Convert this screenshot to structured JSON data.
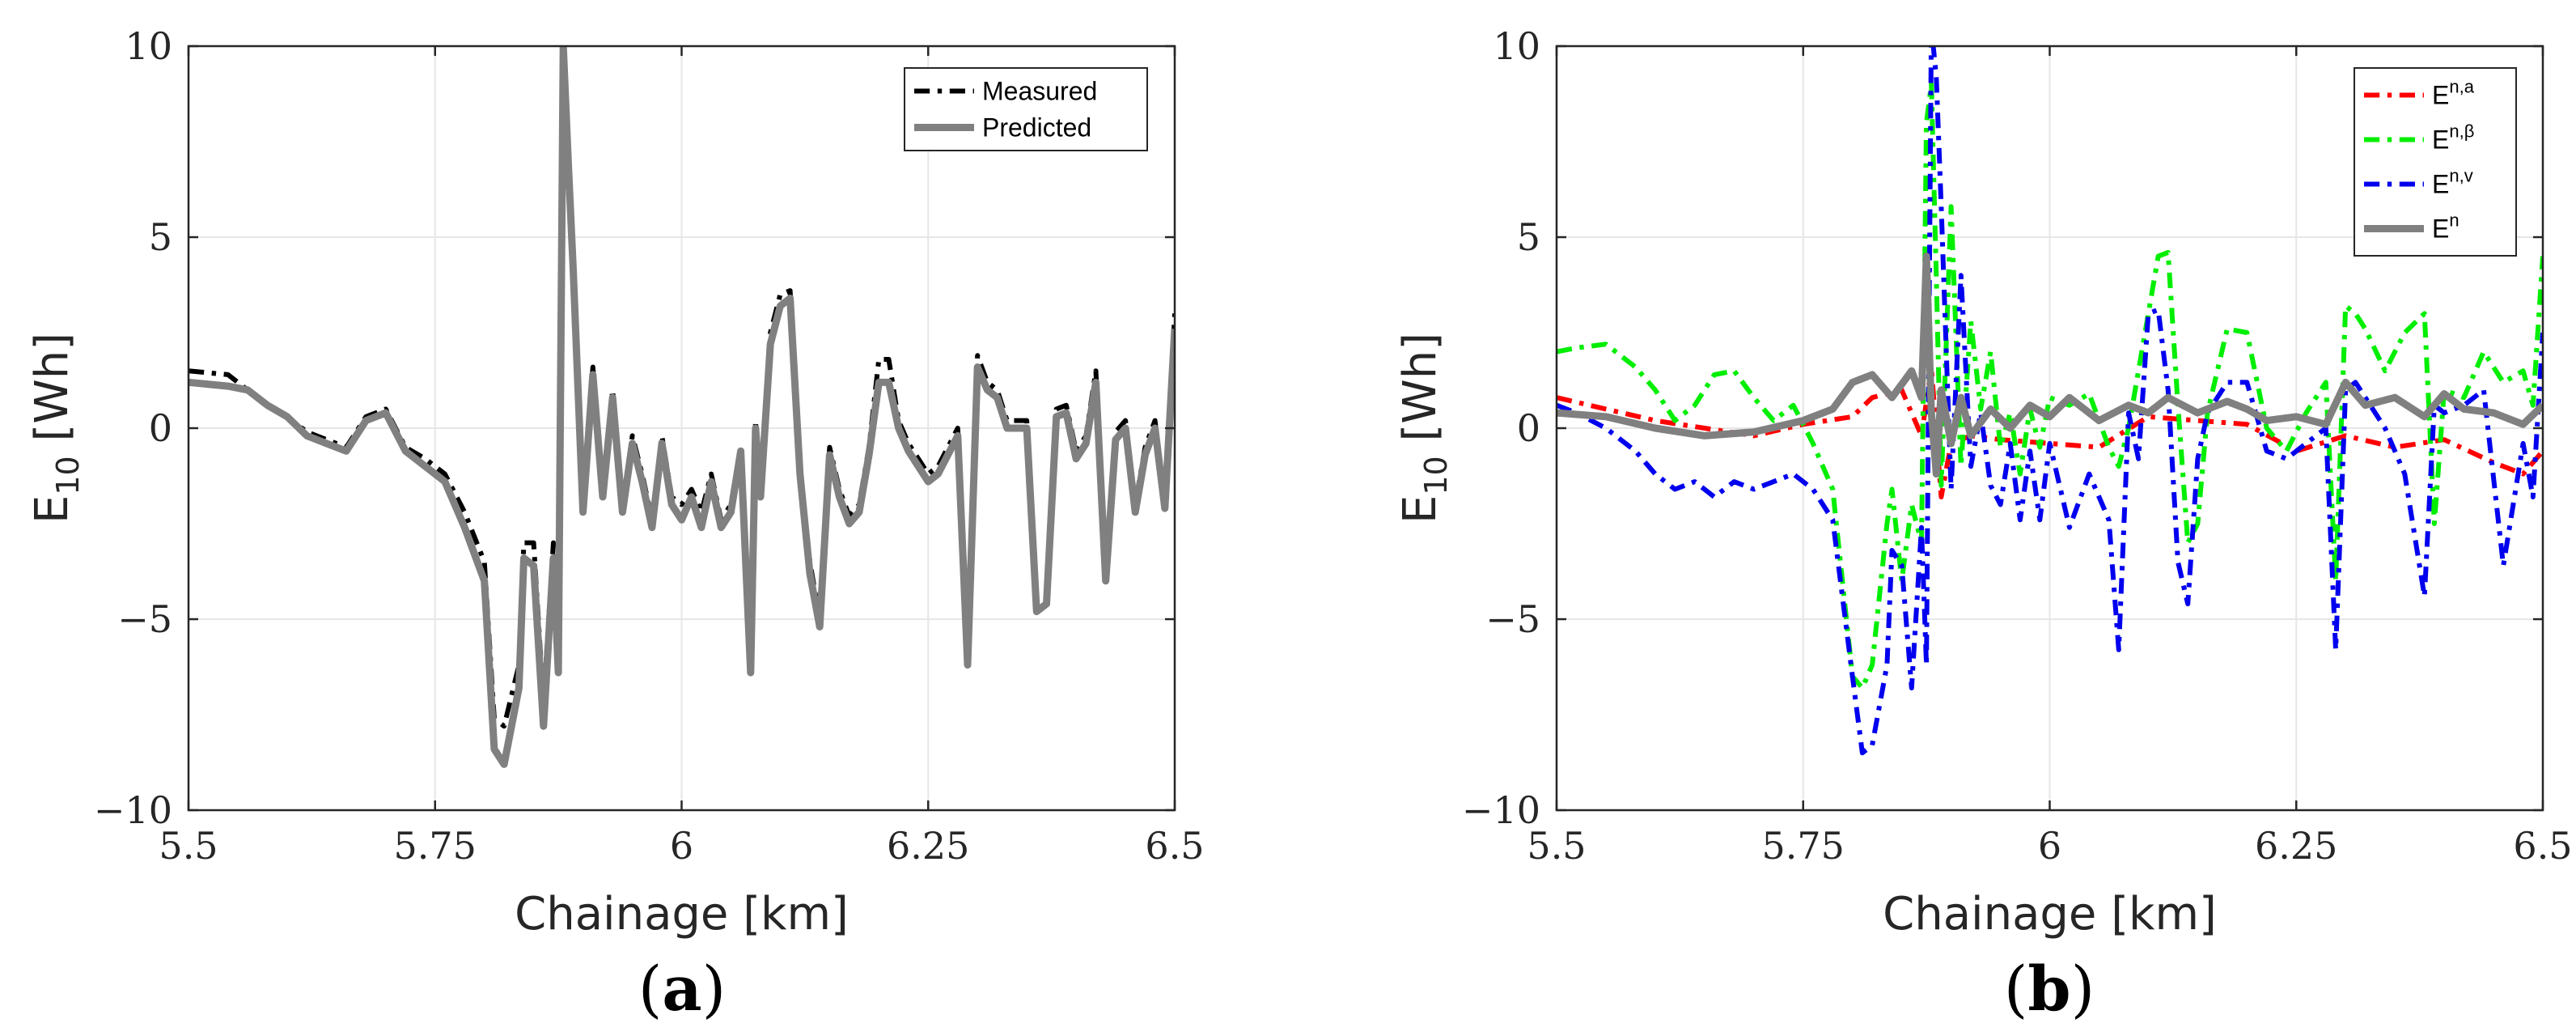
{
  "chart_data": [
    {
      "type": "line",
      "panel_label": "a",
      "xlabel": "Chainage [km]",
      "ylabel": "E",
      "ylabel_sub": "10",
      "ylabel_unit": " [Wh]",
      "xlim": [
        5.5,
        6.5
      ],
      "ylim": [
        -10,
        10
      ],
      "xticks": [
        5.5,
        5.75,
        6,
        6.25,
        6.5
      ],
      "xtick_labels": [
        "5.5",
        "5.75",
        "6",
        "6.25",
        "6.5"
      ],
      "yticks": [
        -10,
        -5,
        0,
        5,
        10
      ],
      "ytick_labels": [
        "−10",
        "−5",
        "0",
        "5",
        "10"
      ],
      "grid": true,
      "legend_position": "top-right",
      "series": [
        {
          "name": "Measured",
          "color": "#000000",
          "style": "dashdot",
          "x": [
            5.5,
            5.54,
            5.56,
            5.58,
            5.6,
            5.62,
            5.64,
            5.66,
            5.68,
            5.7,
            5.72,
            5.74,
            5.76,
            5.78,
            5.8,
            5.81,
            5.82,
            5.835,
            5.84,
            5.85,
            5.86,
            5.87,
            5.875,
            5.88,
            5.885,
            5.89,
            5.9,
            5.91,
            5.92,
            5.93,
            5.94,
            5.95,
            5.96,
            5.97,
            5.98,
            5.99,
            6.0,
            6.01,
            6.02,
            6.03,
            6.04,
            6.05,
            6.06,
            6.07,
            6.075,
            6.08,
            6.09,
            6.1,
            6.11,
            6.12,
            6.13,
            6.14,
            6.15,
            6.16,
            6.17,
            6.18,
            6.19,
            6.2,
            6.21,
            6.22,
            6.23,
            6.24,
            6.25,
            6.26,
            6.27,
            6.28,
            6.29,
            6.3,
            6.31,
            6.32,
            6.33,
            6.34,
            6.35,
            6.36,
            6.37,
            6.38,
            6.39,
            6.4,
            6.41,
            6.42,
            6.43,
            6.44,
            6.45,
            6.46,
            6.47,
            6.48,
            6.49,
            6.5
          ],
          "y": [
            1.5,
            1.4,
            1.0,
            0.6,
            0.3,
            -0.1,
            -0.3,
            -0.5,
            0.3,
            0.5,
            -0.5,
            -0.8,
            -1.2,
            -2.2,
            -3.5,
            -7.6,
            -7.8,
            -6.2,
            -3.0,
            -3.0,
            -7.2,
            -3.0,
            -6.0,
            10.5,
            7.4,
            4.6,
            -1.8,
            1.6,
            -1.6,
            1.0,
            -2.0,
            -0.2,
            -1.2,
            -2.4,
            -0.2,
            -1.8,
            -2.0,
            -1.6,
            -2.2,
            -1.2,
            -2.4,
            -2.0,
            -0.5,
            -6.2,
            0.2,
            -1.5,
            2.5,
            3.5,
            3.6,
            -1.0,
            -3.5,
            -5.0,
            -0.5,
            -1.6,
            -2.3,
            -2.0,
            -0.5,
            1.8,
            1.8,
            0.2,
            -0.4,
            -0.8,
            -1.2,
            -1.0,
            -0.5,
            0.0,
            -5.8,
            1.9,
            1.2,
            1.0,
            0.2,
            0.2,
            0.2,
            -4.5,
            -4.4,
            0.5,
            0.6,
            -0.6,
            -0.2,
            1.5,
            -3.9,
            -0.1,
            0.2,
            -2.0,
            -0.5,
            0.2,
            -1.9,
            3.0
          ]
        },
        {
          "name": "Predicted",
          "color": "#808080",
          "style": "solid",
          "x": [
            5.5,
            5.54,
            5.56,
            5.58,
            5.6,
            5.62,
            5.64,
            5.66,
            5.68,
            5.7,
            5.72,
            5.74,
            5.76,
            5.78,
            5.8,
            5.81,
            5.82,
            5.835,
            5.84,
            5.85,
            5.86,
            5.87,
            5.875,
            5.88,
            5.885,
            5.89,
            5.9,
            5.91,
            5.92,
            5.93,
            5.94,
            5.95,
            5.96,
            5.97,
            5.98,
            5.99,
            6.0,
            6.01,
            6.02,
            6.03,
            6.04,
            6.05,
            6.06,
            6.07,
            6.075,
            6.08,
            6.09,
            6.1,
            6.11,
            6.12,
            6.13,
            6.14,
            6.15,
            6.16,
            6.17,
            6.18,
            6.19,
            6.2,
            6.21,
            6.22,
            6.23,
            6.24,
            6.25,
            6.26,
            6.27,
            6.28,
            6.29,
            6.3,
            6.31,
            6.32,
            6.33,
            6.34,
            6.35,
            6.36,
            6.37,
            6.38,
            6.39,
            6.4,
            6.41,
            6.42,
            6.43,
            6.44,
            6.45,
            6.46,
            6.47,
            6.48,
            6.49,
            6.5
          ],
          "y": [
            1.2,
            1.1,
            1.0,
            0.6,
            0.3,
            -0.2,
            -0.4,
            -0.6,
            0.2,
            0.4,
            -0.6,
            -1.0,
            -1.4,
            -2.6,
            -4.0,
            -8.4,
            -8.8,
            -6.8,
            -3.4,
            -3.6,
            -7.8,
            -3.4,
            -6.4,
            10.0,
            7.0,
            4.2,
            -2.2,
            1.4,
            -1.8,
            0.8,
            -2.2,
            -0.4,
            -1.4,
            -2.6,
            -0.4,
            -2.0,
            -2.4,
            -1.8,
            -2.6,
            -1.4,
            -2.6,
            -2.2,
            -0.6,
            -6.4,
            0.0,
            -1.8,
            2.2,
            3.2,
            3.4,
            -1.2,
            -3.8,
            -5.2,
            -0.7,
            -1.8,
            -2.5,
            -2.2,
            -0.7,
            1.2,
            1.2,
            0.0,
            -0.6,
            -1.0,
            -1.4,
            -1.2,
            -0.7,
            -0.2,
            -6.2,
            1.6,
            1.0,
            0.8,
            0.0,
            0.0,
            0.0,
            -4.8,
            -4.6,
            0.3,
            0.4,
            -0.8,
            -0.4,
            1.2,
            -4.0,
            -0.3,
            0.0,
            -2.2,
            -0.7,
            0.0,
            -2.1,
            2.6
          ]
        }
      ]
    },
    {
      "type": "line",
      "panel_label": "b",
      "xlabel": "Chainage [km]",
      "ylabel": "E",
      "ylabel_sub": "10",
      "ylabel_unit": " [Wh]",
      "xlim": [
        5.5,
        6.5
      ],
      "ylim": [
        -10,
        10
      ],
      "xticks": [
        5.5,
        5.75,
        6,
        6.25,
        6.5
      ],
      "xtick_labels": [
        "5.5",
        "5.75",
        "6",
        "6.25",
        "6.5"
      ],
      "yticks": [
        -10,
        -5,
        0,
        5,
        10
      ],
      "ytick_labels": [
        "−10",
        "−5",
        "0",
        "5",
        "10"
      ],
      "grid": true,
      "legend_position": "top-right",
      "series": [
        {
          "name": "E",
          "superscript": "n,a",
          "color": "#ff0000",
          "style": "dashdot",
          "x": [
            5.5,
            5.55,
            5.6,
            5.65,
            5.7,
            5.75,
            5.8,
            5.82,
            5.85,
            5.87,
            5.88,
            5.89,
            5.9,
            5.92,
            5.95,
            6.0,
            6.05,
            6.1,
            6.15,
            6.2,
            6.25,
            6.3,
            6.35,
            6.4,
            6.45,
            6.48,
            6.5
          ],
          "y": [
            0.8,
            0.5,
            0.2,
            0.0,
            -0.2,
            0.1,
            0.3,
            0.8,
            1.0,
            -0.2,
            1.6,
            -1.8,
            -0.4,
            -0.2,
            -0.3,
            -0.4,
            -0.5,
            0.3,
            0.2,
            0.1,
            -0.6,
            -0.2,
            -0.5,
            -0.3,
            -0.9,
            -1.2,
            -0.6
          ]
        },
        {
          "name": "E",
          "superscript": "n,β",
          "color": "#00ee00",
          "style": "dashdot",
          "x": [
            5.5,
            5.52,
            5.55,
            5.58,
            5.6,
            5.62,
            5.64,
            5.66,
            5.68,
            5.7,
            5.72,
            5.74,
            5.76,
            5.78,
            5.8,
            5.81,
            5.82,
            5.835,
            5.84,
            5.85,
            5.86,
            5.87,
            5.875,
            5.88,
            5.885,
            5.89,
            5.9,
            5.91,
            5.92,
            5.93,
            5.94,
            5.95,
            5.96,
            5.97,
            5.98,
            5.99,
            6.0,
            6.02,
            6.04,
            6.06,
            6.07,
            6.08,
            6.09,
            6.1,
            6.11,
            6.12,
            6.13,
            6.14,
            6.15,
            6.16,
            6.18,
            6.2,
            6.22,
            6.24,
            6.26,
            6.28,
            6.29,
            6.3,
            6.31,
            6.32,
            6.34,
            6.36,
            6.38,
            6.39,
            6.4,
            6.42,
            6.44,
            6.46,
            6.48,
            6.49,
            6.5
          ],
          "y": [
            2.0,
            2.1,
            2.2,
            1.6,
            1.0,
            0.2,
            0.6,
            1.4,
            1.5,
            0.8,
            0.2,
            0.6,
            -0.4,
            -1.6,
            -6.5,
            -6.8,
            -6.2,
            -2.5,
            -1.6,
            -4.0,
            -2.0,
            -3.0,
            8.0,
            9.0,
            4.0,
            -1.5,
            5.8,
            -1.0,
            2.8,
            0.5,
            2.0,
            -0.5,
            0.4,
            -1.2,
            0.5,
            -0.5,
            0.8,
            0.6,
            0.9,
            -0.5,
            -1.0,
            0.0,
            1.5,
            3.0,
            4.5,
            4.6,
            0.6,
            -3.0,
            -2.5,
            0.4,
            2.6,
            2.5,
            0.0,
            -0.6,
            0.4,
            1.2,
            -4.0,
            3.2,
            3.0,
            2.6,
            1.5,
            2.5,
            3.0,
            -2.5,
            1.0,
            0.8,
            2.0,
            1.2,
            1.5,
            0.6,
            4.5
          ]
        },
        {
          "name": "E",
          "superscript": "n,v",
          "color": "#0000ee",
          "style": "dashdot",
          "x": [
            5.5,
            5.52,
            5.55,
            5.58,
            5.6,
            5.62,
            5.64,
            5.66,
            5.68,
            5.7,
            5.72,
            5.74,
            5.76,
            5.78,
            5.8,
            5.81,
            5.82,
            5.835,
            5.84,
            5.85,
            5.86,
            5.87,
            5.875,
            5.88,
            5.885,
            5.89,
            5.9,
            5.91,
            5.92,
            5.93,
            5.94,
            5.95,
            5.96,
            5.97,
            5.98,
            5.99,
            6.0,
            6.02,
            6.04,
            6.06,
            6.07,
            6.08,
            6.09,
            6.1,
            6.11,
            6.12,
            6.13,
            6.14,
            6.15,
            6.16,
            6.18,
            6.2,
            6.22,
            6.24,
            6.26,
            6.28,
            6.29,
            6.3,
            6.31,
            6.32,
            6.34,
            6.36,
            6.38,
            6.39,
            6.4,
            6.42,
            6.44,
            6.46,
            6.48,
            6.49,
            6.5
          ],
          "y": [
            0.6,
            0.4,
            0.0,
            -0.6,
            -1.2,
            -1.6,
            -1.4,
            -1.8,
            -1.4,
            -1.6,
            -1.4,
            -1.2,
            -1.6,
            -2.4,
            -6.5,
            -8.5,
            -8.3,
            -6.2,
            -3.2,
            -3.6,
            -6.8,
            -2.6,
            -6.2,
            10.5,
            9.2,
            5.8,
            -1.6,
            4.0,
            -1.0,
            0.4,
            -1.5,
            -2.0,
            -0.4,
            -2.4,
            -0.6,
            -2.4,
            -0.4,
            -2.6,
            -1.2,
            -2.4,
            -5.8,
            0.4,
            -0.8,
            3.0,
            3.1,
            1.0,
            -3.5,
            -4.6,
            -0.8,
            0.4,
            1.2,
            1.2,
            -0.6,
            -0.8,
            -0.4,
            0.0,
            -5.8,
            1.0,
            1.2,
            0.8,
            0.0,
            -1.2,
            -4.4,
            0.6,
            0.4,
            0.6,
            1.0,
            -3.6,
            -0.4,
            -1.8,
            2.5
          ]
        },
        {
          "name": "E",
          "superscript": "n",
          "color": "#808080",
          "style": "solid",
          "x": [
            5.5,
            5.55,
            5.6,
            5.65,
            5.7,
            5.75,
            5.78,
            5.8,
            5.82,
            5.84,
            5.86,
            5.87,
            5.875,
            5.88,
            5.885,
            5.89,
            5.9,
            5.91,
            5.92,
            5.94,
            5.96,
            5.98,
            6.0,
            6.02,
            6.05,
            6.08,
            6.1,
            6.12,
            6.15,
            6.18,
            6.2,
            6.22,
            6.25,
            6.28,
            6.3,
            6.32,
            6.35,
            6.38,
            6.4,
            6.42,
            6.45,
            6.48,
            6.5
          ],
          "y": [
            0.4,
            0.3,
            0.0,
            -0.2,
            -0.1,
            0.2,
            0.5,
            1.2,
            1.4,
            0.8,
            1.5,
            0.8,
            4.5,
            0.4,
            -1.2,
            1.0,
            -0.4,
            0.8,
            -0.2,
            0.5,
            0.0,
            0.6,
            0.3,
            0.8,
            0.2,
            0.6,
            0.4,
            0.8,
            0.4,
            0.7,
            0.5,
            0.2,
            0.3,
            0.1,
            1.2,
            0.6,
            0.8,
            0.3,
            0.9,
            0.5,
            0.4,
            0.1,
            0.6
          ]
        }
      ]
    }
  ]
}
